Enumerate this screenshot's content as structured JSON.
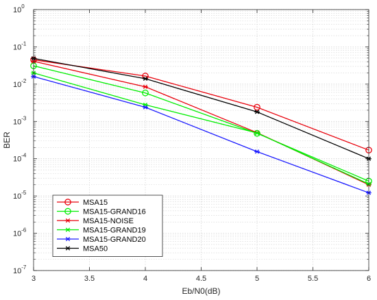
{
  "chart_data": {
    "type": "line",
    "xlabel": "Eb/N0(dB)",
    "ylabel": "BER",
    "x": [
      3,
      4,
      5,
      6
    ],
    "xlim": [
      3,
      6
    ],
    "ylim": [
      1e-07,
      1
    ],
    "yscale": "log",
    "grid": true,
    "legend_position": "bottom-left",
    "x_ticks": [
      {
        "value": 3,
        "label": "3"
      },
      {
        "value": 3.5,
        "label": "3.5"
      },
      {
        "value": 4,
        "label": "4"
      },
      {
        "value": 4.5,
        "label": "4.5"
      },
      {
        "value": 5,
        "label": "5"
      },
      {
        "value": 5.5,
        "label": "5.5"
      },
      {
        "value": 6,
        "label": "6"
      }
    ],
    "y_ticks": [
      {
        "value": 1,
        "base": "10",
        "exp": "0"
      },
      {
        "value": 0.1,
        "base": "10",
        "exp": "-1"
      },
      {
        "value": 0.01,
        "base": "10",
        "exp": "-2"
      },
      {
        "value": 0.001,
        "base": "10",
        "exp": "-3"
      },
      {
        "value": 0.0001,
        "base": "10",
        "exp": "-4"
      },
      {
        "value": 1e-05,
        "base": "10",
        "exp": "-5"
      },
      {
        "value": 1e-06,
        "base": "10",
        "exp": "-6"
      },
      {
        "value": 1e-07,
        "base": "10",
        "exp": "-7"
      }
    ],
    "series": [
      {
        "name": "MSA15",
        "color": "#e8000b",
        "marker": "circle",
        "values": [
          0.045,
          0.0165,
          0.0024,
          0.00017
        ]
      },
      {
        "name": "MSA15-GRAND16",
        "color": "#00ee00",
        "marker": "circle",
        "values": [
          0.031,
          0.0058,
          0.00048,
          2.5e-05
        ]
      },
      {
        "name": "MSA15-NOISE",
        "color": "#e8000b",
        "marker": "asterisk",
        "values": [
          0.041,
          0.0085,
          0.0005,
          2e-05
        ]
      },
      {
        "name": "MSA15-GRAND19",
        "color": "#00ee00",
        "marker": "asterisk",
        "values": [
          0.02,
          0.0028,
          0.00049,
          2.1e-05
        ]
      },
      {
        "name": "MSA15-GRAND20",
        "color": "#1a1aff",
        "marker": "asterisk",
        "values": [
          0.016,
          0.0024,
          0.000155,
          1.22e-05
        ]
      },
      {
        "name": "MSA50",
        "color": "#000000",
        "marker": "asterisk",
        "values": [
          0.049,
          0.014,
          0.0018,
          0.0001
        ]
      }
    ]
  }
}
